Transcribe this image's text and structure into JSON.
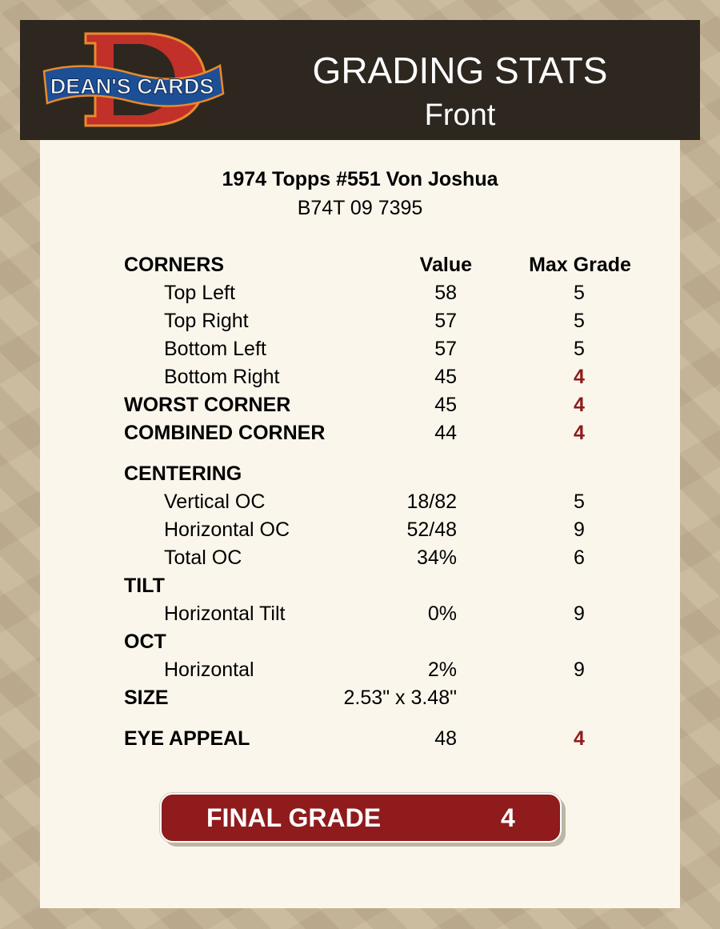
{
  "header": {
    "logo_text": "DEAN'S CARDS",
    "title": "GRADING STATS",
    "subtitle": "Front"
  },
  "card": {
    "name": "1974 Topps #551 Von Joshua",
    "cert": "B74T 09 7395"
  },
  "columns": {
    "value": "Value",
    "max": "Max Grade"
  },
  "colors": {
    "accent_red": "#8f1b1c",
    "header_bg": "#2d2720"
  },
  "rows": [
    {
      "label": "CORNERS",
      "style": "header"
    },
    {
      "label": "Top Left",
      "value": "58",
      "max": "5",
      "style": "sub"
    },
    {
      "label": "Top Right",
      "value": "57",
      "max": "5",
      "style": "sub"
    },
    {
      "label": "Bottom Left",
      "value": "57",
      "max": "5",
      "style": "sub"
    },
    {
      "label": "Bottom Right",
      "value": "45",
      "max": "4",
      "style": "sub",
      "red": true
    },
    {
      "label": "WORST CORNER",
      "value": "45",
      "max": "4",
      "style": "bold",
      "red": true
    },
    {
      "label": "COMBINED CORNER",
      "value": "44",
      "max": "4",
      "style": "bold",
      "red": true
    },
    {
      "label": "CENTERING",
      "style": "bold",
      "gap": true
    },
    {
      "label": "Vertical OC",
      "value": "18/82",
      "max": "5",
      "style": "sub"
    },
    {
      "label": "Horizontal OC",
      "value": "52/48",
      "max": "9",
      "style": "sub"
    },
    {
      "label": "Total OC",
      "value": "34%",
      "max": "6",
      "style": "sub"
    },
    {
      "label": "TILT",
      "style": "bold"
    },
    {
      "label": "Horizontal Tilt",
      "value": "0%",
      "max": "9",
      "style": "sub"
    },
    {
      "label": "OCT",
      "style": "bold"
    },
    {
      "label": "Horizontal",
      "value": "2%",
      "max": "9",
      "style": "sub"
    },
    {
      "label": "SIZE",
      "value": "2.53\" x 3.48\"",
      "style": "bold"
    },
    {
      "label": "EYE APPEAL",
      "value": "48",
      "max": "4",
      "style": "bold",
      "red": true,
      "gap": true
    }
  ],
  "final": {
    "label": "FINAL GRADE",
    "value": "4"
  }
}
